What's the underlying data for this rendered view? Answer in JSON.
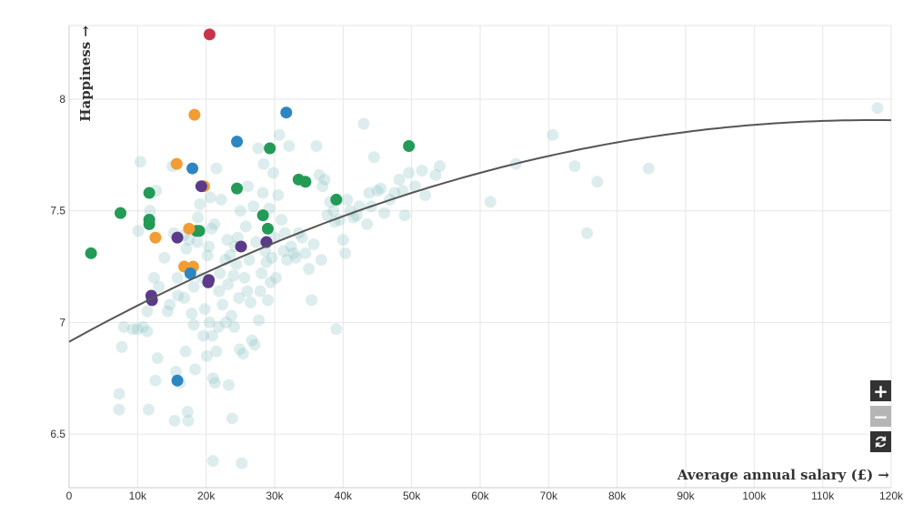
{
  "chart_data": {
    "type": "scatter",
    "title": "",
    "xlabel": "Average annual salary (£) →",
    "ylabel": "Happiness →",
    "xlim": [
      0,
      120000
    ],
    "ylim": [
      6.26,
      8.33
    ],
    "x_ticks": [
      0,
      10000,
      20000,
      30000,
      40000,
      50000,
      60000,
      70000,
      80000,
      90000,
      100000,
      110000,
      120000
    ],
    "x_tick_labels": [
      "0",
      "10k",
      "20k",
      "30k",
      "40k",
      "50k",
      "60k",
      "70k",
      "80k",
      "90k",
      "100k",
      "110k",
      "120k"
    ],
    "y_ticks": [
      6.5,
      7,
      7.5,
      8
    ],
    "y_tick_labels": [
      "6.5",
      "7",
      "7.5",
      "8"
    ],
    "grid": true,
    "colors": {
      "background_points": "#8fc4c4",
      "trend_line": "#555555",
      "green": "#239b56",
      "orange": "#f39c33",
      "blue": "#2e86c1",
      "purple": "#5b3a8a",
      "red": "#c93449"
    },
    "series": [
      {
        "color": "green",
        "points": [
          [
            3200,
            7.31
          ],
          [
            7500,
            7.49
          ],
          [
            11700,
            7.58
          ],
          [
            11700,
            7.46
          ],
          [
            11700,
            7.44
          ],
          [
            18600,
            7.41
          ],
          [
            19000,
            7.41
          ],
          [
            24500,
            7.6
          ],
          [
            29300,
            7.78
          ],
          [
            28300,
            7.48
          ],
          [
            29000,
            7.42
          ],
          [
            33500,
            7.64
          ],
          [
            34500,
            7.63
          ],
          [
            39000,
            7.55
          ],
          [
            49600,
            7.79
          ]
        ]
      },
      {
        "color": "orange",
        "points": [
          [
            12600,
            7.38
          ],
          [
            15700,
            7.71
          ],
          [
            16800,
            7.25
          ],
          [
            17500,
            7.42
          ],
          [
            18100,
            7.25
          ],
          [
            18300,
            7.93
          ],
          [
            19700,
            7.61
          ]
        ]
      },
      {
        "color": "blue",
        "points": [
          [
            15800,
            6.74
          ],
          [
            17700,
            7.22
          ],
          [
            18000,
            7.69
          ],
          [
            24500,
            7.81
          ],
          [
            31700,
            7.94
          ]
        ]
      },
      {
        "color": "purple",
        "points": [
          [
            12000,
            7.12
          ],
          [
            12100,
            7.1
          ],
          [
            15800,
            7.38
          ],
          [
            19300,
            7.61
          ],
          [
            20300,
            7.18
          ],
          [
            20400,
            7.19
          ],
          [
            25100,
            7.34
          ],
          [
            28800,
            7.36
          ]
        ]
      },
      {
        "color": "red",
        "points": [
          [
            20500,
            8.29
          ]
        ]
      },
      {
        "color": "background_points",
        "points": [
          [
            7300,
            6.68
          ],
          [
            7300,
            6.61
          ],
          [
            7700,
            6.89
          ],
          [
            8000,
            6.98
          ],
          [
            9300,
            6.97
          ],
          [
            10000,
            6.97
          ],
          [
            10100,
            7.41
          ],
          [
            10400,
            7.72
          ],
          [
            10800,
            6.98
          ],
          [
            11400,
            6.96
          ],
          [
            11400,
            7.05
          ],
          [
            11800,
            7.5
          ],
          [
            11600,
            6.61
          ],
          [
            12400,
            7.2
          ],
          [
            12600,
            6.74
          ],
          [
            12700,
            7.59
          ],
          [
            12900,
            6.84
          ],
          [
            13100,
            7.16
          ],
          [
            13900,
            7.29
          ],
          [
            14400,
            7.05
          ],
          [
            14700,
            7.08
          ],
          [
            15100,
            7.7
          ],
          [
            15300,
            7.4
          ],
          [
            15400,
            6.56
          ],
          [
            15600,
            6.78
          ],
          [
            15800,
            7.2
          ],
          [
            15900,
            7.12
          ],
          [
            16200,
            6.73
          ],
          [
            16700,
            7.39
          ],
          [
            16800,
            7.11
          ],
          [
            17000,
            6.87
          ],
          [
            17100,
            7.33
          ],
          [
            17300,
            6.6
          ],
          [
            17400,
            6.56
          ],
          [
            17500,
            7.37
          ],
          [
            17900,
            7.04
          ],
          [
            18200,
            7.16
          ],
          [
            18200,
            6.99
          ],
          [
            18400,
            6.79
          ],
          [
            18700,
            7.36
          ],
          [
            18800,
            7.47
          ],
          [
            19100,
            7.53
          ],
          [
            19400,
            7.2
          ],
          [
            19600,
            6.94
          ],
          [
            19800,
            7.06
          ],
          [
            20100,
            6.85
          ],
          [
            20200,
            7.3
          ],
          [
            20400,
            7.34
          ],
          [
            20500,
            7.0
          ],
          [
            20600,
            7.56
          ],
          [
            20800,
            7.42
          ],
          [
            20900,
            6.94
          ],
          [
            21000,
            6.75
          ],
          [
            21000,
            6.38
          ],
          [
            21200,
            7.44
          ],
          [
            21300,
            6.73
          ],
          [
            21500,
            7.69
          ],
          [
            21500,
            6.87
          ],
          [
            21800,
            6.98
          ],
          [
            21900,
            7.14
          ],
          [
            22000,
            7.22
          ],
          [
            22200,
            7.55
          ],
          [
            22400,
            7.08
          ],
          [
            22800,
            7.28
          ],
          [
            22900,
            7.0
          ],
          [
            23100,
            7.37
          ],
          [
            23200,
            7.17
          ],
          [
            23300,
            6.72
          ],
          [
            23500,
            7.3
          ],
          [
            23700,
            7.03
          ],
          [
            23800,
            6.57
          ],
          [
            24000,
            7.21
          ],
          [
            24100,
            6.98
          ],
          [
            24200,
            7.34
          ],
          [
            24400,
            7.26
          ],
          [
            24600,
            7.38
          ],
          [
            24800,
            7.11
          ],
          [
            24900,
            6.88
          ],
          [
            25000,
            7.5
          ],
          [
            25200,
            6.37
          ],
          [
            25400,
            6.86
          ],
          [
            25600,
            7.2
          ],
          [
            25800,
            7.43
          ],
          [
            26000,
            7.14
          ],
          [
            26100,
            7.61
          ],
          [
            26300,
            7.28
          ],
          [
            26500,
            7.09
          ],
          [
            26700,
            6.92
          ],
          [
            26900,
            7.52
          ],
          [
            27100,
            6.9
          ],
          [
            27300,
            7.36
          ],
          [
            27600,
            7.78
          ],
          [
            27700,
            7.01
          ],
          [
            27900,
            7.14
          ],
          [
            28100,
            7.22
          ],
          [
            28300,
            7.58
          ],
          [
            28400,
            7.71
          ],
          [
            28600,
            7.32
          ],
          [
            28800,
            7.27
          ],
          [
            29000,
            7.1
          ],
          [
            29200,
            7.51
          ],
          [
            29400,
            7.18
          ],
          [
            29600,
            7.29
          ],
          [
            29800,
            7.67
          ],
          [
            30000,
            7.38
          ],
          [
            30200,
            7.2
          ],
          [
            30500,
            7.57
          ],
          [
            30700,
            7.84
          ],
          [
            31000,
            7.46
          ],
          [
            31300,
            7.32
          ],
          [
            31500,
            7.4
          ],
          [
            31800,
            7.28
          ],
          [
            32100,
            7.79
          ],
          [
            32400,
            7.34
          ],
          [
            32800,
            7.31
          ],
          [
            33100,
            7.29
          ],
          [
            33500,
            7.4
          ],
          [
            34000,
            7.38
          ],
          [
            34500,
            7.31
          ],
          [
            35000,
            7.24
          ],
          [
            35400,
            7.1
          ],
          [
            35700,
            7.35
          ],
          [
            36100,
            7.79
          ],
          [
            36500,
            7.66
          ],
          [
            36800,
            7.28
          ],
          [
            37000,
            7.61
          ],
          [
            37300,
            7.64
          ],
          [
            37700,
            7.48
          ],
          [
            38100,
            7.54
          ],
          [
            38600,
            7.5
          ],
          [
            38800,
            7.45
          ],
          [
            39000,
            6.97
          ],
          [
            39500,
            7.46
          ],
          [
            40000,
            7.37
          ],
          [
            40300,
            7.31
          ],
          [
            40600,
            7.55
          ],
          [
            41000,
            7.5
          ],
          [
            41500,
            7.47
          ],
          [
            42000,
            7.48
          ],
          [
            42400,
            7.52
          ],
          [
            43000,
            7.89
          ],
          [
            43500,
            7.44
          ],
          [
            43800,
            7.58
          ],
          [
            44100,
            7.52
          ],
          [
            44500,
            7.74
          ],
          [
            45000,
            7.59
          ],
          [
            45500,
            7.6
          ],
          [
            46000,
            7.49
          ],
          [
            46800,
            7.55
          ],
          [
            47500,
            7.58
          ],
          [
            48200,
            7.64
          ],
          [
            48700,
            7.59
          ],
          [
            49000,
            7.48
          ],
          [
            49600,
            7.67
          ],
          [
            50500,
            7.61
          ],
          [
            51500,
            7.68
          ],
          [
            52000,
            7.57
          ],
          [
            53500,
            7.66
          ],
          [
            54100,
            7.7
          ],
          [
            61500,
            7.54
          ],
          [
            65200,
            7.71
          ],
          [
            70600,
            7.84
          ],
          [
            73800,
            7.7
          ],
          [
            75600,
            7.4
          ],
          [
            77100,
            7.63
          ],
          [
            84600,
            7.69
          ],
          [
            118000,
            7.96
          ]
        ]
      }
    ],
    "trend_line": {
      "type": "quadratic",
      "points": [
        [
          0,
          6.905
        ],
        [
          20000,
          7.24
        ],
        [
          40000,
          7.475
        ],
        [
          60000,
          7.66
        ],
        [
          80000,
          7.805
        ],
        [
          100000,
          7.89
        ],
        [
          120000,
          7.905
        ]
      ]
    }
  },
  "controls": {
    "zoom_in_label": "+",
    "zoom_out_label": "−"
  }
}
